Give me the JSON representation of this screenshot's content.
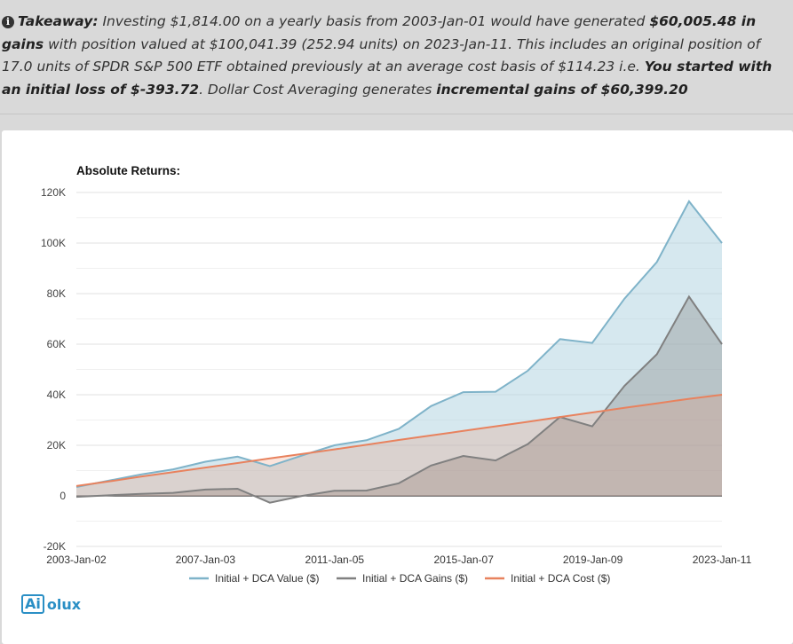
{
  "takeaway": {
    "label": "Takeaway:",
    "t1": " Investing $1,814.00 on a yearly basis from 2003-Jan-01 would have generated ",
    "b1": "$60,005.48 in gains",
    "t2": " with position valued at $100,041.39 (252.94 units) on 2023-Jan-11. This includes an original position of 17.0 units of SPDR S&P 500 ETF obtained previously at an average cost basis of $114.23 i.e. ",
    "b2": "You started with an initial loss of $-393.72",
    "t3": ". Dollar Cost Averaging generates ",
    "b3": "incremental gains of $60,399.20"
  },
  "logo": {
    "boxed": "Ai",
    "rest": "olux"
  },
  "colors": {
    "value": "#7fb3c9",
    "gains": "#808080",
    "cost": "#e8825e"
  },
  "chart_data": {
    "type": "area",
    "title": "Absolute Returns:",
    "ylim": [
      -20000,
      120000
    ],
    "yticks": [
      -20000,
      0,
      20000,
      40000,
      60000,
      80000,
      100000,
      120000
    ],
    "ytick_labels": [
      "-20K",
      "0",
      "20K",
      "40K",
      "60K",
      "80K",
      "100K",
      "120K"
    ],
    "xtick_labels": [
      "2003-Jan-02",
      "2007-Jan-03",
      "2011-Jan-05",
      "2015-Jan-07",
      "2019-Jan-09",
      "2023-Jan-11"
    ],
    "x": [
      "2003-01-02",
      "2004-01-02",
      "2005-01-03",
      "2006-01-03",
      "2007-01-03",
      "2008-01-02",
      "2009-01-02",
      "2010-01-04",
      "2011-01-03",
      "2012-01-03",
      "2013-01-02",
      "2014-01-02",
      "2015-01-02",
      "2016-01-04",
      "2017-01-03",
      "2018-01-02",
      "2019-01-02",
      "2020-01-02",
      "2021-01-04",
      "2022-01-03",
      "2023-01-11"
    ],
    "series": [
      {
        "name": "Initial + DCA Value ($)",
        "values": [
          3500,
          6000,
          8500,
          10500,
          13500,
          15500,
          11800,
          16000,
          20000,
          22000,
          26500,
          35500,
          41000,
          41200,
          49500,
          62000,
          60500,
          78000,
          92500,
          116500,
          100000
        ]
      },
      {
        "name": "Initial + DCA Gains ($)",
        "values": [
          -400,
          200,
          800,
          1200,
          2500,
          2800,
          -2700,
          0,
          2000,
          2100,
          5000,
          12000,
          15800,
          14000,
          20500,
          31200,
          27500,
          43500,
          56000,
          78800,
          60000
        ]
      },
      {
        "name": "Initial + DCA Cost ($)",
        "values": [
          3900,
          5700,
          7600,
          9400,
          11200,
          13000,
          14800,
          16600,
          18400,
          20200,
          22100,
          23900,
          25700,
          27500,
          29300,
          31200,
          33000,
          34800,
          36600,
          38400,
          40000
        ]
      }
    ]
  }
}
